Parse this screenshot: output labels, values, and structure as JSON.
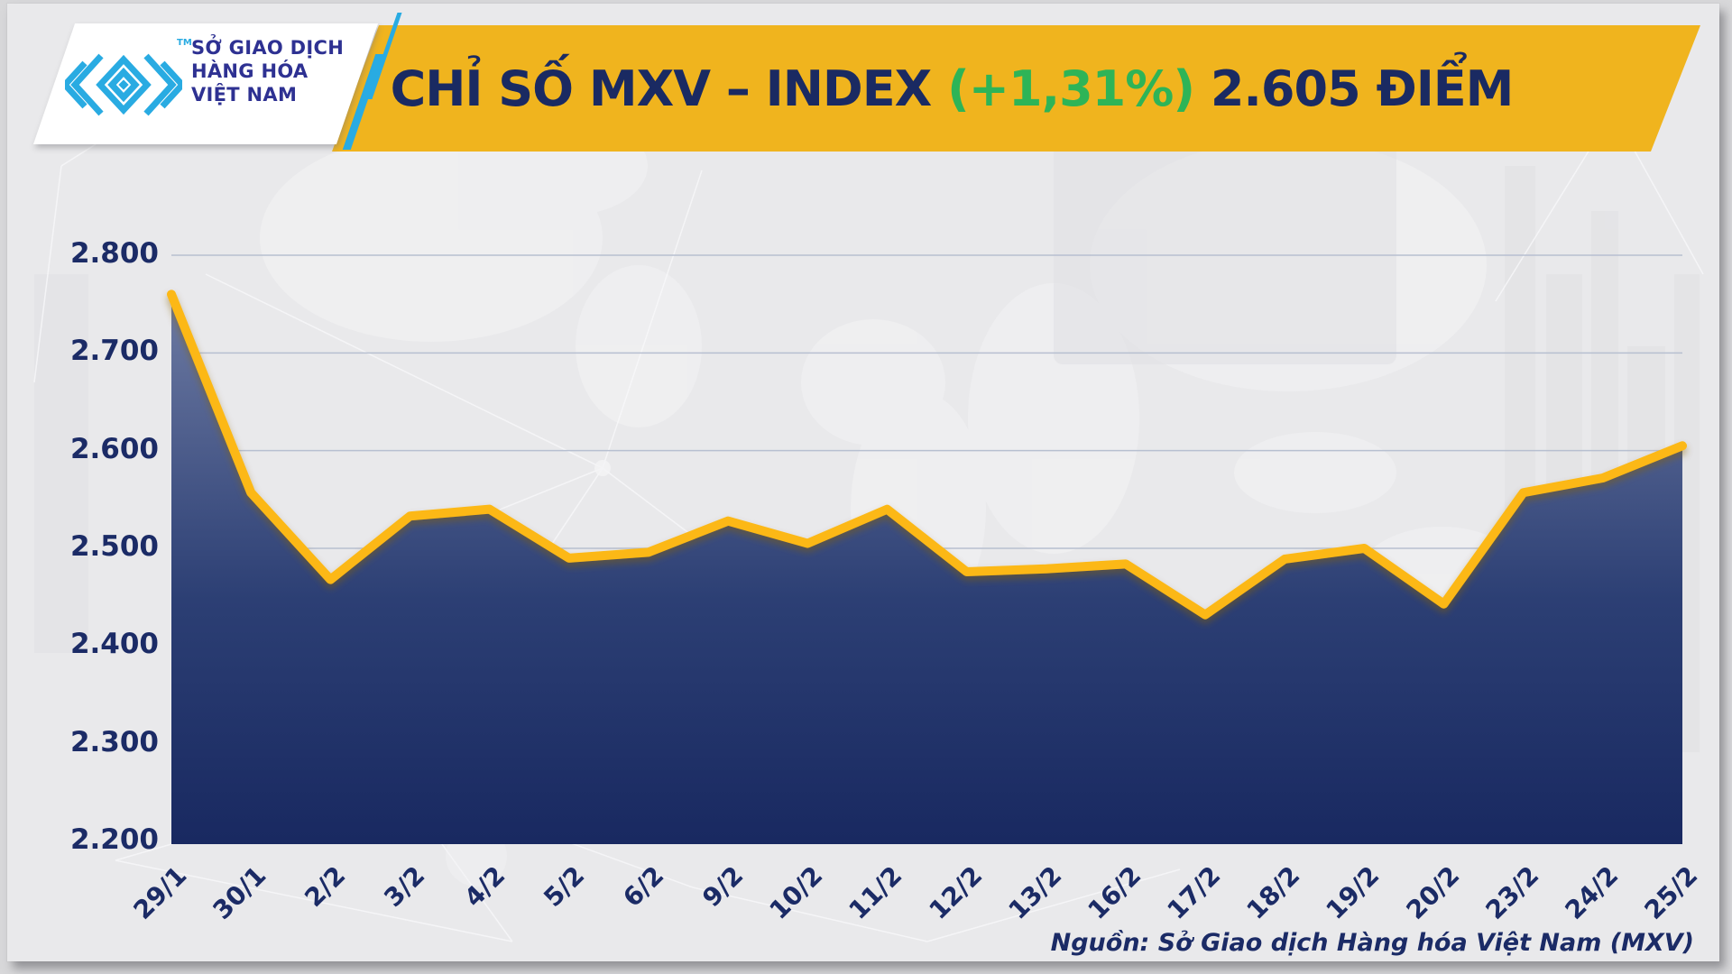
{
  "header": {
    "title_part1": "CHỈ SỐ MXV – INDEX ",
    "title_accent": "(+1,31%)",
    "title_part2": " 2.605 ĐIỂM",
    "banner_color": "#F0B41E",
    "title_color": "#1A2A62",
    "accent_color": "#2EB457"
  },
  "logo": {
    "line1": "SỞ GIAO DỊCH",
    "line2": "HÀNG HÓA",
    "line3": "VIỆT NAM",
    "trademark": "TM",
    "brand_color": "#29ABE2",
    "text_color": "#2E3192"
  },
  "source_note": "Nguồn: Sở Giao dịch Hàng hóa Việt Nam (MXV)",
  "chart_data": {
    "type": "area",
    "title": "CHỈ SỐ MXV – INDEX (+1,31%) 2.605 ĐIỂM",
    "categories": [
      "29/1",
      "30/1",
      "2/2",
      "3/2",
      "4/2",
      "5/2",
      "6/2",
      "9/2",
      "10/2",
      "11/2",
      "12/2",
      "13/2",
      "16/2",
      "17/2",
      "18/2",
      "19/2",
      "20/2",
      "23/2",
      "24/2",
      "25/2"
    ],
    "values": [
      2760,
      2557,
      2468,
      2533,
      2540,
      2490,
      2496,
      2528,
      2505,
      2540,
      2476,
      2479,
      2484,
      2432,
      2489,
      2500,
      2443,
      2557,
      2572,
      2605
    ],
    "ylim": [
      2200,
      2800
    ],
    "y_ticks": [
      {
        "label": "2.800",
        "value": 2800
      },
      {
        "label": "2.700",
        "value": 2700
      },
      {
        "label": "2.600",
        "value": 2600
      },
      {
        "label": "2.500",
        "value": 2500
      },
      {
        "label": "2.400",
        "value": 2400
      },
      {
        "label": "2.300",
        "value": 2300
      },
      {
        "label": "2.200",
        "value": 2200
      }
    ],
    "xlabel": "",
    "ylabel": "",
    "grid": true,
    "legend": "none",
    "line_color": "#FCB813",
    "fill_gradient_top": "#6E7BA3",
    "fill_gradient_mid": "#2C3F74",
    "fill_gradient_bottom": "#182860",
    "grid_color": "#b7bfd0",
    "tick_color": "#1b2b66"
  }
}
